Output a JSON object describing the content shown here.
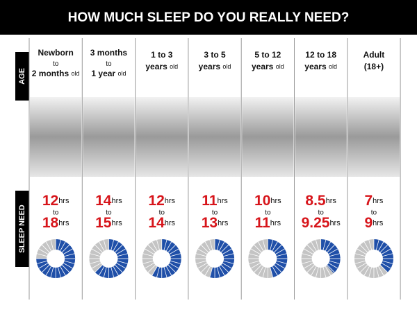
{
  "title": "HOW MUCH SLEEP DO YOU REALLY NEED?",
  "side_labels": {
    "age": "AGE",
    "sleep_need": "SLEEP NEED"
  },
  "unit": "hrs",
  "connector": "to",
  "ring_range": [
    0,
    24
  ],
  "ring_color": "#1f4fa8",
  "ring_rest_color": "#c4c4c4",
  "number_color": "#d7141a",
  "columns": [
    {
      "age": [
        "Newborn",
        "to",
        "2 months"
      ],
      "age_suffix": "old",
      "min": 12,
      "max": 18
    },
    {
      "age": [
        "3 months",
        "to",
        "1 year"
      ],
      "age_suffix": "old",
      "min": 14,
      "max": 15
    },
    {
      "age": [
        "1 to 3",
        "years"
      ],
      "age_suffix": "old",
      "min": 12,
      "max": 14
    },
    {
      "age": [
        "3 to 5",
        "years"
      ],
      "age_suffix": "old",
      "min": 11,
      "max": 13
    },
    {
      "age": [
        "5 to 12",
        "years"
      ],
      "age_suffix": "old",
      "min": 10,
      "max": 11
    },
    {
      "age": [
        "12 to 18",
        "years"
      ],
      "age_suffix": "old",
      "min": 8.5,
      "max": 9.25
    },
    {
      "age": [
        "Adult",
        "(18+)"
      ],
      "min": 7,
      "max": 9
    }
  ]
}
